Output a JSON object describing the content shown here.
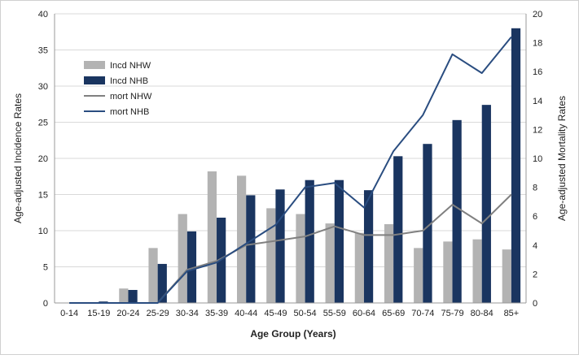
{
  "chart_data": {
    "type": "bar",
    "categories": [
      "0-14",
      "15-19",
      "20-24",
      "25-29",
      "30-34",
      "35-39",
      "40-44",
      "45-49",
      "50-54",
      "55-59",
      "60-64",
      "65-69",
      "70-74",
      "75-79",
      "80-84",
      "85+"
    ],
    "xlabel": "Age Group (Years)",
    "ylabel_left": "Age-adjusted Incidence Rates",
    "ylabel_right": "Age-adjusted Mortality Rates",
    "ylim_left": [
      0,
      40
    ],
    "ylim_right": [
      0,
      20
    ],
    "yticks_left": [
      "0",
      "5",
      "10",
      "15",
      "20",
      "25",
      "30",
      "35",
      "40"
    ],
    "yticks_right": [
      "0",
      "2",
      "4",
      "6",
      "8",
      "10",
      "12",
      "14",
      "16",
      "18",
      "20"
    ],
    "grid": true,
    "legend_position": "top-left",
    "bar_series": [
      {
        "name": "Incd NHW",
        "color": "#b3b3b3",
        "axis": "left",
        "values": [
          0.0,
          0.1,
          2.0,
          7.6,
          12.3,
          18.2,
          17.6,
          13.1,
          12.3,
          11.0,
          9.7,
          10.9,
          7.6,
          8.5,
          8.8,
          7.4
        ]
      },
      {
        "name": "Incd NHB",
        "color": "#1a3560",
        "axis": "left",
        "values": [
          0.0,
          0.2,
          1.8,
          5.4,
          9.9,
          11.8,
          14.9,
          15.7,
          17.0,
          17.0,
          15.6,
          20.3,
          22.0,
          25.3,
          27.4,
          38.0
        ]
      }
    ],
    "line_series": [
      {
        "name": "mort NHW",
        "color": "#808080",
        "axis": "right",
        "values": [
          0.0,
          0.0,
          0.0,
          0.0,
          2.3,
          2.9,
          4.0,
          4.3,
          4.6,
          5.3,
          4.7,
          4.7,
          5.0,
          6.8,
          5.5,
          7.5
        ]
      },
      {
        "name": "mort NHB",
        "color": "#2a4d80",
        "axis": "right",
        "values": [
          0.0,
          0.0,
          0.0,
          0.0,
          2.2,
          2.8,
          4.1,
          5.4,
          8.0,
          8.3,
          6.6,
          10.5,
          13.0,
          17.2,
          15.9,
          18.4
        ]
      }
    ]
  }
}
